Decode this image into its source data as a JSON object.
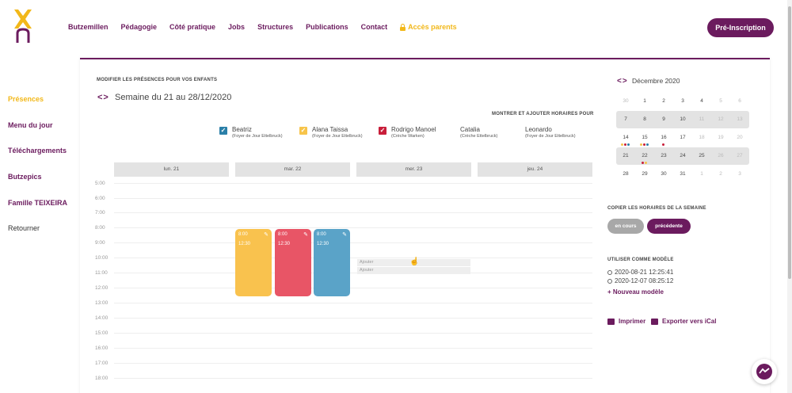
{
  "header": {
    "nav": [
      "Butzemillen",
      "Pédagogie",
      "Côté pratique",
      "Jobs",
      "Structures",
      "Publications",
      "Contact"
    ],
    "parents_link": "Accès parents",
    "cta": "Pré-Inscription"
  },
  "sidebar": {
    "items": [
      "Présences",
      "Menu du jour",
      "Téléchargements",
      "Butzepics",
      "Famille TEIXEIRA",
      "Retourner"
    ]
  },
  "main": {
    "section_title": "MODIFIER LES PRÉSENCES POUR VOS ENFANTS",
    "week_title": "Semaine du 21 au 28/12/2020",
    "show_label": "MONTRER ET AJOUTER HORAIRES POUR",
    "children": [
      {
        "name": "Beatriz",
        "place": "(Foyer de Jour Ettelbruck)",
        "checked": true,
        "color": "#2a7fa8"
      },
      {
        "name": "Alana Taissa",
        "place": "(Foyer de Jour Ettelbruck)",
        "checked": true,
        "color": "#f7c44a"
      },
      {
        "name": "Rodrigo Manoel",
        "place": "(Crèche Warken)",
        "checked": true,
        "color": "#c81e3a"
      },
      {
        "name": "Catalia",
        "place": "(Crèche Ettelbruck)",
        "checked": false
      },
      {
        "name": "Leonardo",
        "place": "(Foyer de Jour Ettelbruck)",
        "checked": false
      }
    ],
    "days": [
      "lun. 21",
      "mar. 22",
      "mer. 23",
      "jeu. 24"
    ],
    "hours": [
      "5:00",
      "6:00",
      "7:00",
      "8:00",
      "9:00",
      "10:00",
      "11:00",
      "12:00",
      "13:00",
      "14:00",
      "15:00",
      "16:00",
      "17:00",
      "18:00"
    ],
    "events": [
      {
        "start": "8:00",
        "end": "12:30",
        "color": "#f9c24e"
      },
      {
        "start": "8:00",
        "end": "12:30",
        "color": "#e85566"
      },
      {
        "start": "8:00",
        "end": "12:30",
        "color": "#5aa3c8"
      }
    ],
    "add_labels": [
      "Ajouter",
      "Ajouter"
    ]
  },
  "calendar": {
    "title": "Décembre 2020",
    "weeks": [
      [
        "30",
        "1",
        "2",
        "3",
        "4",
        "5",
        "6"
      ],
      [
        "7",
        "8",
        "9",
        "10",
        "11",
        "12",
        "13"
      ],
      [
        "14",
        "15",
        "16",
        "17",
        "18",
        "19",
        "20"
      ],
      [
        "21",
        "22",
        "23",
        "24",
        "25",
        "26",
        "27"
      ],
      [
        "28",
        "29",
        "30",
        "31",
        "1",
        "2",
        "3"
      ]
    ],
    "dot_colors": {
      "blue": "#2a7fa8",
      "yellow": "#f7c44a",
      "red": "#c81e3a"
    }
  },
  "copy": {
    "title": "COPIER LES HORAIRES DE LA SEMAINE",
    "current": "en cours",
    "previous": "précédente"
  },
  "models": {
    "title": "UTILISER COMME MODÈLE",
    "items": [
      "2020-08-21 12:25:41",
      "2020-12-07 08:25:12"
    ],
    "new": "+ Nouveau modèle"
  },
  "actions": {
    "print": "Imprimer",
    "export": "Exporter vers iCal"
  }
}
